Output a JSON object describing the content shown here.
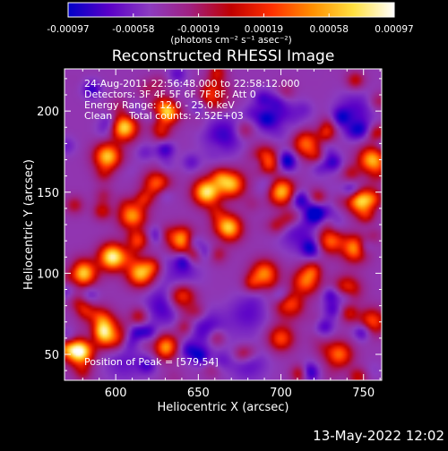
{
  "chart_data": {
    "type": "heatmap",
    "title": "Reconstructed RHESSI Image",
    "xlabel": "Heliocentric X (arcsec)",
    "ylabel": "Heliocentric Y (arcsec)",
    "xlim": [
      569,
      761
    ],
    "ylim": [
      34,
      226
    ],
    "x_ticks": [
      600,
      650,
      700,
      750
    ],
    "y_ticks": [
      50,
      100,
      150,
      200
    ],
    "colorbar": {
      "range": [
        -0.00097,
        0.00097
      ],
      "ticks": [
        "-0.00097",
        "-0.00058",
        "-0.00019",
        "0.00019",
        "0.00058",
        "0.00097"
      ],
      "unit_label": "(photons cm⁻² s⁻¹ asec⁻²)",
      "colormap": [
        "#0000c8",
        "#5a00c8",
        "#8c3cc0",
        "#a02080",
        "#c00000",
        "#ff3000",
        "#ff9000",
        "#ffe040",
        "#ffffff"
      ]
    },
    "annotations": {
      "time_range": "24-Aug-2011 22:56:48.000 to 22:58:12.000",
      "detectors": "Detectors: 3F 4F 5F 6F 7F 8F, Att 0",
      "energy_range": "Energy Range: 12.0 - 25.0 keV",
      "method": "Clean",
      "total_counts": "Total counts: 2.52E+03",
      "peak": "Position of Peak = [579,54]"
    },
    "bright_regions": [
      {
        "x": 578,
        "y": 52,
        "level": 1.0
      },
      {
        "x": 595,
        "y": 172,
        "level": 0.75
      },
      {
        "x": 605,
        "y": 190,
        "level": 0.8
      },
      {
        "x": 630,
        "y": 200,
        "level": 0.8
      },
      {
        "x": 660,
        "y": 210,
        "level": 0.65
      },
      {
        "x": 610,
        "y": 135,
        "level": 0.65
      },
      {
        "x": 625,
        "y": 155,
        "level": 0.55
      },
      {
        "x": 655,
        "y": 150,
        "level": 0.85
      },
      {
        "x": 670,
        "y": 155,
        "level": 0.7
      },
      {
        "x": 668,
        "y": 128,
        "level": 0.8
      },
      {
        "x": 640,
        "y": 120,
        "level": 0.7
      },
      {
        "x": 580,
        "y": 100,
        "level": 0.8
      },
      {
        "x": 598,
        "y": 110,
        "level": 0.9
      },
      {
        "x": 615,
        "y": 100,
        "level": 0.75
      },
      {
        "x": 640,
        "y": 85,
        "level": 0.6
      },
      {
        "x": 590,
        "y": 70,
        "level": 0.7
      },
      {
        "x": 600,
        "y": 62,
        "level": 0.6
      },
      {
        "x": 690,
        "y": 170,
        "level": 0.6
      },
      {
        "x": 700,
        "y": 150,
        "level": 0.7
      },
      {
        "x": 715,
        "y": 180,
        "level": 0.55
      },
      {
        "x": 690,
        "y": 100,
        "level": 0.6
      },
      {
        "x": 705,
        "y": 80,
        "level": 0.6
      },
      {
        "x": 715,
        "y": 95,
        "level": 0.55
      },
      {
        "x": 748,
        "y": 145,
        "level": 0.8
      },
      {
        "x": 755,
        "y": 170,
        "level": 0.7
      },
      {
        "x": 745,
        "y": 115,
        "level": 0.65
      },
      {
        "x": 730,
        "y": 120,
        "level": 0.55
      },
      {
        "x": 740,
        "y": 90,
        "level": 0.5
      },
      {
        "x": 735,
        "y": 50,
        "level": 0.55
      },
      {
        "x": 755,
        "y": 70,
        "level": 0.5
      },
      {
        "x": 700,
        "y": 60,
        "level": 0.45
      },
      {
        "x": 630,
        "y": 55,
        "level": 0.4
      }
    ],
    "dark_regions": [
      {
        "x": 665,
        "y": 185,
        "level": 1.0
      },
      {
        "x": 700,
        "y": 195,
        "level": 0.9
      },
      {
        "x": 640,
        "y": 100,
        "level": 0.6
      },
      {
        "x": 630,
        "y": 80,
        "level": 1.0
      },
      {
        "x": 655,
        "y": 65,
        "level": 0.9
      },
      {
        "x": 725,
        "y": 140,
        "level": 0.7
      },
      {
        "x": 710,
        "y": 125,
        "level": 0.7
      },
      {
        "x": 605,
        "y": 45,
        "level": 0.6
      },
      {
        "x": 680,
        "y": 45,
        "level": 0.7
      },
      {
        "x": 745,
        "y": 200,
        "level": 0.8
      },
      {
        "x": 680,
        "y": 75,
        "level": 0.7
      }
    ]
  },
  "footer": {
    "date": "13-May-2022 12:02"
  }
}
